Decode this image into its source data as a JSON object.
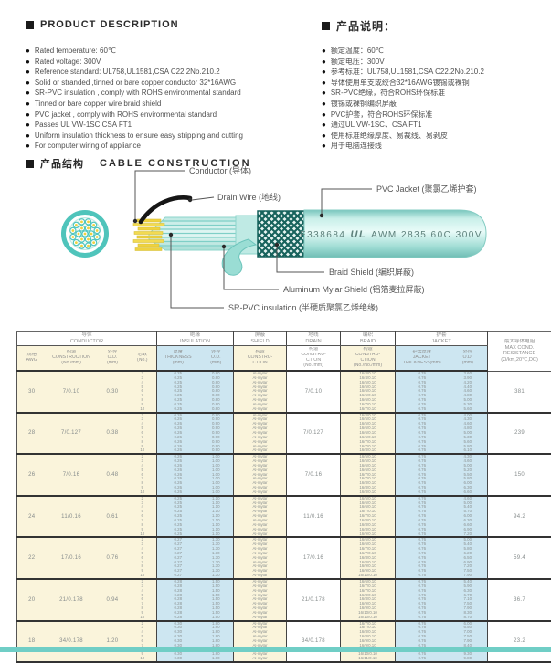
{
  "product_description": {
    "title_en": "PRODUCT DESCRIPTION",
    "title_zh": "产品说明：",
    "bullets_en": [
      "Rated temperature: 60℃",
      "Rated voltage: 300V",
      "Reference standard: UL758,UL1581,CSA C22.2No.210.2",
      "Solid or stranded ,tinned or bare copper conductor 32*16AWG",
      "SR-PVC insulation , comply with ROHS environmental standard",
      "Tinned or bare copper wire braid shield",
      "PVC jacket , comply with ROHS environmental standard",
      "Passes UL VW-1SC,CSA FT1",
      "Uniform insulation thickness to ensure easy stripping and cutting",
      "For computer wiring of appliance"
    ],
    "bullets_zh": [
      "额定温度：60℃",
      "额定电压：300V",
      "参考标准：UL758,UL1581,CSA C22.2No.210.2",
      "导体使用单支或绞合32*16AWG镀锡或裸铜",
      "SR-PVC绝缘，符合ROHS环保标准",
      "镀锡或裸铜编织屏蔽",
      "PVC护套，符合ROHS环保标准",
      "通过UL VW-1SC、CSA FT1",
      "使用标准绝缘厚度、易裁线、易剥皮",
      "用于电脑连接线"
    ]
  },
  "construction": {
    "section_zh": "产品结构",
    "section_en": "CABLE CONSTRUCTION",
    "labels": {
      "conductor": "Conductor (导体)",
      "drain_wire": "Drain Wire (地线)",
      "pvc_jacket": "PVC Jacket (聚氯乙烯护套)",
      "braid_shield": "Braid Shield (编织屏蔽)",
      "aluminum_mylar": "Aluminum Mylar Shield (铝箔麦拉屏蔽)",
      "sr_pvc": "SR-PVC insulation (半硬质聚氯乙烯绝缘)",
      "marking_prefix": "E338684",
      "marking_ul": "UL",
      "marking_suffix": "AWM 2835 60C 300V"
    },
    "colors": {
      "teal": "#4FC4BB",
      "jacket": "#A9E2DA",
      "braid_dark": "#17625C",
      "strand_yellow": "#EFD23F"
    }
  },
  "table": {
    "groups": [
      {
        "zh": "导体",
        "en": "CONDUCTOR"
      },
      {
        "zh": "绝缘",
        "en": "INSULATION"
      },
      {
        "zh": "屏蔽",
        "en": "SHIELD"
      },
      {
        "zh": "地线",
        "en": "DRAIN"
      },
      {
        "zh": "编织",
        "en": "BRAID"
      },
      {
        "zh": "护套",
        "en": "JACKET"
      }
    ],
    "subheaders": [
      {
        "lines": [
          "规格",
          "AWG"
        ]
      },
      {
        "lines": [
          "构造",
          "CONSTRUCTION",
          "(No./mm)"
        ]
      },
      {
        "lines": [
          "外径",
          "O.D.",
          "(mm)"
        ]
      },
      {
        "lines": [
          "芯数",
          "(No.)"
        ]
      },
      {
        "lines": [
          "厚度",
          "THICKNESS",
          "(mm)"
        ]
      },
      {
        "lines": [
          "外径",
          "O.D.",
          "(mm)"
        ]
      },
      {
        "lines": [
          "构造",
          "CONSTRU-",
          "CTION"
        ]
      },
      {
        "lines": [
          "构造",
          "CONSTRU-",
          "CTION",
          "(No./mm)"
        ]
      },
      {
        "lines": [
          "构造",
          "CONSTRU-",
          "CTION",
          "(No./No./mm)"
        ]
      },
      {
        "lines": [
          "护套厚度",
          "JACKET",
          "THICKNESS(mm)"
        ]
      },
      {
        "lines": [
          "外径",
          "O.D.",
          "(mm)"
        ]
      }
    ],
    "resistance_header": {
      "lines": [
        "最大导体电阻",
        "MAX COND.",
        "RESISTANCE",
        "(Ω/km,20℃,DC)"
      ]
    },
    "rows": [
      {
        "awg": "30",
        "construction": "7/0.10",
        "od": "0.30",
        "cores": [
          "2",
          "3",
          "4",
          "5",
          "6",
          "7",
          "8",
          "9",
          "10"
        ],
        "ins_thickness": "0.25",
        "ins_od": "0.80",
        "shield": "Al-mylar",
        "drain": "7/0.10",
        "braid": [
          "16/4/0.10",
          "16/4/0.10",
          "16/5/0.10",
          "16/5/0.10",
          "16/6/0.10",
          "16/6/0.10",
          "16/6/0.10",
          "16/7/0.10",
          "16/7/0.10"
        ],
        "jacket_thickness": "0.76",
        "jacket_od": [
          "3.60",
          "3.90",
          "4.20",
          "4.40",
          "4.60",
          "4.80",
          "5.00",
          "5.30",
          "5.60"
        ],
        "max_resistance": "381"
      },
      {
        "awg": "28",
        "construction": "7/0.127",
        "od": "0.38",
        "cores": [
          "2",
          "3",
          "4",
          "5",
          "6",
          "7",
          "8",
          "9",
          "10"
        ],
        "ins_thickness": "0.26",
        "ins_od": "0.90",
        "shield": "Al-mylar",
        "drain": "7/0.127",
        "braid": [
          "16/4/0.10",
          "16/5/0.10",
          "16/5/0.10",
          "16/6/0.10",
          "16/6/0.10",
          "16/6/0.10",
          "16/7/0.10",
          "16/7/0.10",
          "16/8/0.10"
        ],
        "jacket_thickness": "0.76",
        "jacket_od": [
          "4.00",
          "4.30",
          "4.60",
          "4.80",
          "5.00",
          "5.30",
          "5.60",
          "5.80",
          "6.10"
        ],
        "max_resistance": "239"
      },
      {
        "awg": "26",
        "construction": "7/0.16",
        "od": "0.48",
        "cores": [
          "2",
          "3",
          "4",
          "5",
          "6",
          "7",
          "8",
          "9",
          "10"
        ],
        "ins_thickness": "0.26",
        "ins_od": "1.00",
        "shield": "Al-mylar",
        "drain": "7/0.16",
        "braid": [
          "16/5/0.10",
          "16/5/0.10",
          "16/6/0.10",
          "16/6/0.10",
          "16/7/0.10",
          "16/7/0.10",
          "16/8/0.10",
          "16/8/0.10",
          "16/8/0.10"
        ],
        "jacket_thickness": "0.76",
        "jacket_od": [
          "4.30",
          "4.60",
          "5.00",
          "5.20",
          "5.50",
          "5.80",
          "6.00",
          "6.30",
          "6.60"
        ],
        "max_resistance": "150"
      },
      {
        "awg": "24",
        "construction": "11/0.16",
        "od": "0.61",
        "cores": [
          "2",
          "3",
          "4",
          "5",
          "6",
          "7",
          "8",
          "9",
          "10"
        ],
        "ins_thickness": "0.25",
        "ins_od": "1.10",
        "shield": "Al-mylar",
        "drain": "11/0.16",
        "braid": [
          "16/5/0.10",
          "16/6/0.10",
          "16/6/0.10",
          "16/7/0.10",
          "16/7/0.10",
          "16/8/0.10",
          "16/8/0.10",
          "16/8/0.10",
          "16/9/0.10"
        ],
        "jacket_thickness": "0.76",
        "jacket_od": [
          "4.60",
          "5.00",
          "5.40",
          "5.70",
          "6.00",
          "6.30",
          "6.60",
          "6.90",
          "7.20"
        ],
        "max_resistance": "94.2"
      },
      {
        "awg": "22",
        "construction": "17/0.16",
        "od": "0.76",
        "cores": [
          "2",
          "3",
          "4",
          "5",
          "6",
          "7",
          "8",
          "9",
          "10"
        ],
        "ins_thickness": "0.27",
        "ins_od": "1.30",
        "shield": "Al-mylar",
        "drain": "17/0.16",
        "braid": [
          "16/6/0.10",
          "16/6/0.10",
          "16/7/0.10",
          "16/7/0.10",
          "16/8/0.10",
          "16/8/0.10",
          "16/9/0.10",
          "16/9/0.10",
          "16/10/0.10"
        ],
        "jacket_thickness": "0.76",
        "jacket_od": [
          "5.00",
          "5.40",
          "5.80",
          "6.20",
          "6.50",
          "6.90",
          "7.20",
          "7.50",
          "7.90"
        ],
        "max_resistance": "59.4"
      },
      {
        "awg": "20",
        "construction": "21/0.178",
        "od": "0.94",
        "cores": [
          "2",
          "3",
          "4",
          "5",
          "6",
          "7",
          "8",
          "9",
          "10"
        ],
        "ins_thickness": "0.28",
        "ins_od": "1.50",
        "shield": "Al-mylar",
        "drain": "21/0.178",
        "braid": [
          "16/6/0.10",
          "16/7/0.10",
          "16/7/0.10",
          "16/8/0.10",
          "16/8/0.10",
          "16/9/0.10",
          "16/9/0.10",
          "16/10/0.10",
          "16/10/0.10"
        ],
        "jacket_thickness": "0.76",
        "jacket_od": [
          "5.40",
          "5.90",
          "6.30",
          "6.70",
          "7.10",
          "7.50",
          "7.90",
          "8.30",
          "8.70"
        ],
        "max_resistance": "36.7"
      },
      {
        "awg": "18",
        "construction": "34/0.178",
        "od": "1.20",
        "cores": [
          "2",
          "3",
          "4",
          "5",
          "6",
          "7",
          "8",
          "9",
          "10"
        ],
        "ins_thickness": "0.30",
        "ins_od": "1.80",
        "shield": "Al-mylar",
        "drain": "34/0.178",
        "braid": [
          "16/7/0.10",
          "16/7/0.10",
          "16/8/0.10",
          "16/8/0.10",
          "16/9/0.10",
          "16/9/0.10",
          "16/10/0.10",
          "16/10/0.10",
          "16/11/0.10"
        ],
        "jacket_thickness": "0.76",
        "jacket_od": [
          "6.00",
          "6.50",
          "7.00",
          "7.50",
          "7.90",
          "8.40",
          "8.80",
          "9.30",
          "9.80"
        ],
        "max_resistance": "23.2"
      }
    ]
  }
}
